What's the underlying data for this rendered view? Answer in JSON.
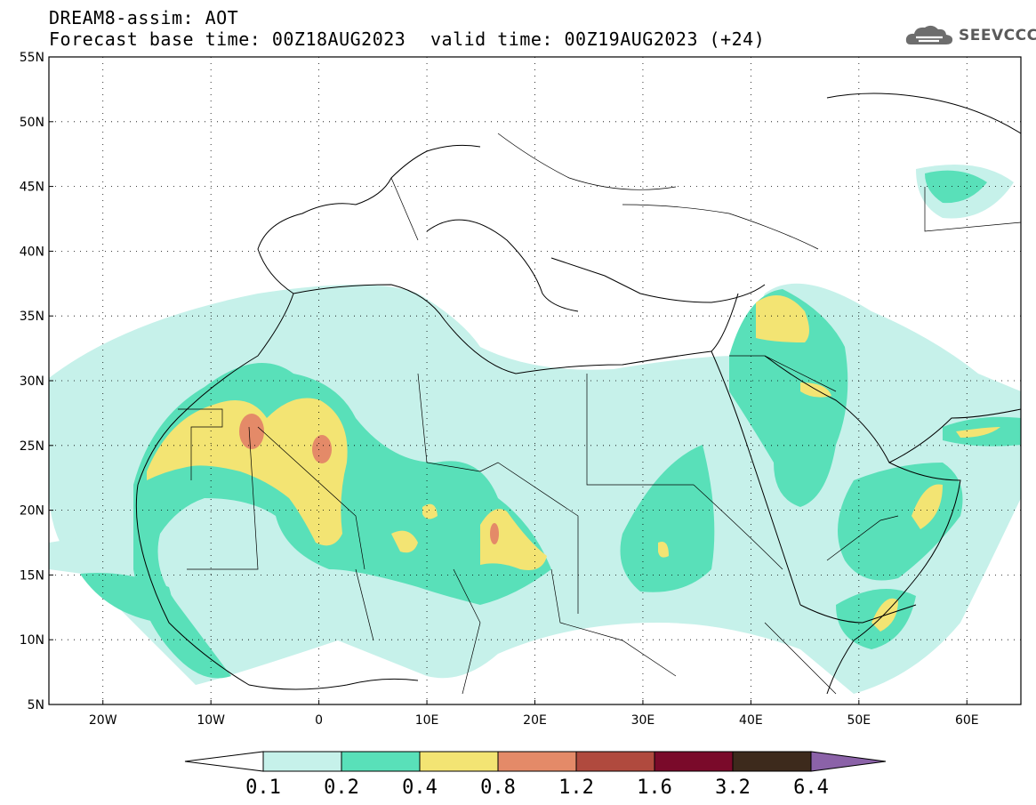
{
  "header": {
    "model_title": "DREAM8-assim: AOT",
    "base_time_text": "Forecast base time: 00Z18AUG2023",
    "valid_time_text": "valid time: 00Z19AUG2023 (+24)"
  },
  "logo": {
    "text": "SEEVCCC",
    "icon": "cloud-logo-icon"
  },
  "map": {
    "variable": "Aerosol Optical Thickness",
    "lon_range": [
      -25,
      65
    ],
    "lat_range": [
      5,
      55
    ],
    "lat_labels": [
      "55N",
      "50N",
      "45N",
      "40N",
      "35N",
      "30N",
      "25N",
      "20N",
      "15N",
      "10N",
      "5N"
    ],
    "lon_labels": [
      "20W",
      "10W",
      "0",
      "10E",
      "20E",
      "30E",
      "40E",
      "50E",
      "60E"
    ],
    "grid": true,
    "colors": {
      "0.1-0.2": "#c6f1ea",
      "0.2-0.4": "#59e0b9",
      "0.4-0.8": "#f3e473",
      "0.8-1.2": "#e48a68",
      "1.2-1.6": "#b04a3e",
      "1.6-3.2": "#7a0a2a",
      "3.2-6.4": "#3d2a1c",
      ">6.4": "#8b62a8"
    }
  },
  "colorbar": {
    "labels": [
      "0.1",
      "0.2",
      "0.4",
      "0.8",
      "1.2",
      "1.6",
      "3.2",
      "6.4"
    ],
    "colors": [
      "#ffffff",
      "#c6f1ea",
      "#59e0b9",
      "#f3e473",
      "#e48a68",
      "#b04a3e",
      "#7a0a2a",
      "#3d2a1c",
      "#8b62a8"
    ]
  }
}
